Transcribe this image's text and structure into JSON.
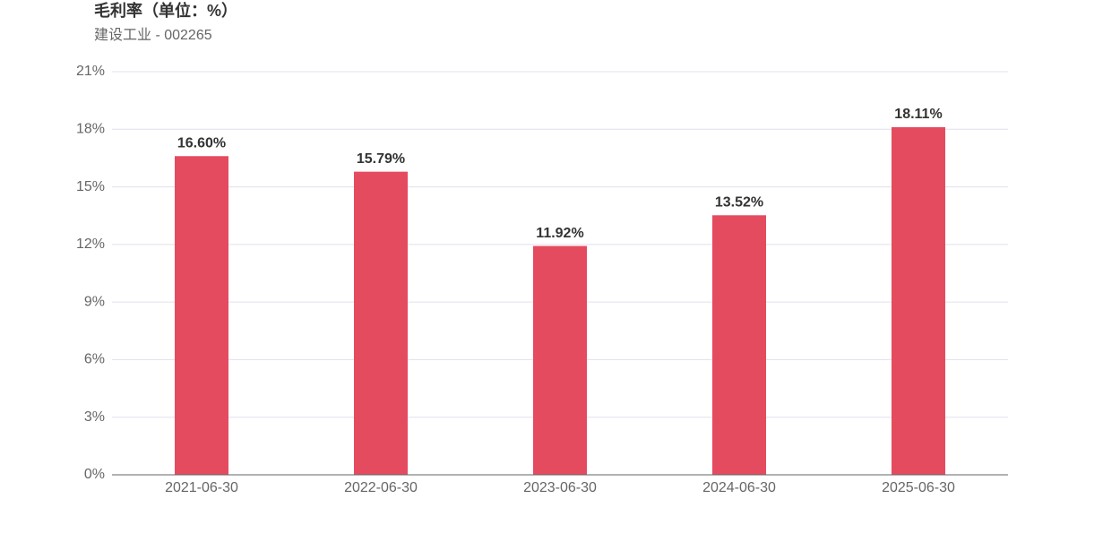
{
  "chart_data": {
    "type": "bar",
    "title": "毛利率（单位：%）",
    "subtitle": "建设工业 - 002265",
    "categories": [
      "2021-06-30",
      "2022-06-30",
      "2023-06-30",
      "2024-06-30",
      "2025-06-30"
    ],
    "values": [
      16.6,
      15.79,
      11.92,
      13.52,
      18.11
    ],
    "value_labels": [
      "16.60%",
      "15.79%",
      "11.92%",
      "13.52%",
      "18.11%"
    ],
    "color": "#e54b5f",
    "ylim": [
      0,
      21
    ],
    "yticks": [
      {
        "value": 0,
        "label": "0%"
      },
      {
        "value": 3,
        "label": "3%"
      },
      {
        "value": 6,
        "label": "6%"
      },
      {
        "value": 9,
        "label": "9%"
      },
      {
        "value": 12,
        "label": "12%"
      },
      {
        "value": 15,
        "label": "15%"
      },
      {
        "value": 18,
        "label": "18%"
      },
      {
        "value": 21,
        "label": "21%"
      }
    ],
    "grid": true
  }
}
